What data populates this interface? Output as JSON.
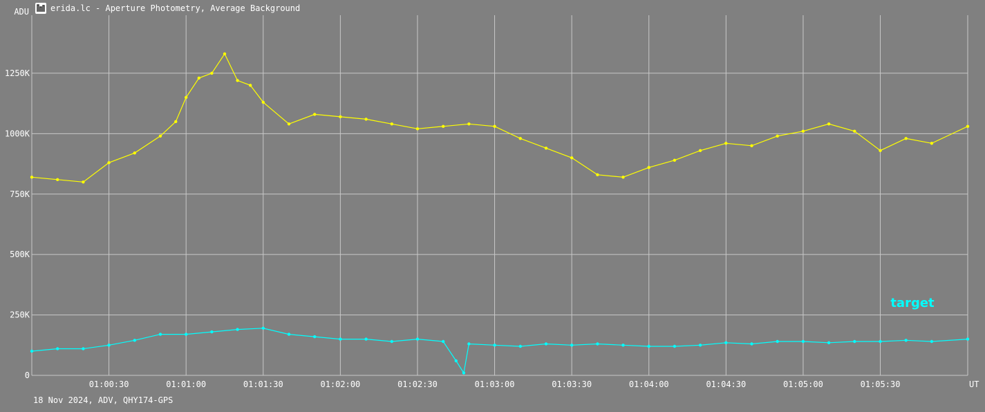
{
  "window": {
    "title": "erida.lc - Aperture Photometry, Average Background",
    "icon": "light-curve-app-icon"
  },
  "footer": {
    "text": "18 Nov 2024, ADV, QHY174-GPS"
  },
  "colors": {
    "background": "#808080",
    "grid": "#c8c8c8",
    "comparison": "#ffff00",
    "target": "#00ffff",
    "text": "#ffffff"
  },
  "chart_data": {
    "type": "line",
    "title": "",
    "xlabel": "UT",
    "ylabel": "ADU",
    "grid": true,
    "x_range": [
      "01:00:00",
      "01:06:04"
    ],
    "ylim": [
      0,
      1490000
    ],
    "x_ticks": [
      "01:00:30",
      "01:01:00",
      "01:01:30",
      "01:02:00",
      "01:02:30",
      "01:03:00",
      "01:03:30",
      "01:04:00",
      "01:04:30",
      "01:05:00",
      "01:05:30"
    ],
    "y_ticks": [
      {
        "value": 0,
        "label": "0"
      },
      {
        "value": 250000,
        "label": "250K"
      },
      {
        "value": 500000,
        "label": "500K"
      },
      {
        "value": 750000,
        "label": "750K"
      },
      {
        "value": 1000000,
        "label": "1000K"
      },
      {
        "value": 1250000,
        "label": "1250K"
      }
    ],
    "series_label": "target",
    "series": [
      {
        "color": "#ffff00",
        "x": [
          "01:00:00",
          "01:00:10",
          "01:00:20",
          "01:00:30",
          "01:00:40",
          "01:00:50",
          "01:00:56",
          "01:01:00",
          "01:01:05",
          "01:01:10",
          "01:01:15",
          "01:01:20",
          "01:01:25",
          "01:01:30",
          "01:01:40",
          "01:01:50",
          "01:02:00",
          "01:02:10",
          "01:02:20",
          "01:02:30",
          "01:02:40",
          "01:02:50",
          "01:03:00",
          "01:03:10",
          "01:03:20",
          "01:03:30",
          "01:03:40",
          "01:03:50",
          "01:04:00",
          "01:04:10",
          "01:04:20",
          "01:04:30",
          "01:04:40",
          "01:04:50",
          "01:05:00",
          "01:05:10",
          "01:05:20",
          "01:05:30",
          "01:05:40",
          "01:05:50",
          "01:06:04"
        ],
        "values": [
          820000,
          810000,
          800000,
          880000,
          920000,
          990000,
          1050000,
          1150000,
          1230000,
          1250000,
          1330000,
          1220000,
          1200000,
          1130000,
          1040000,
          1080000,
          1070000,
          1060000,
          1040000,
          1020000,
          1030000,
          1040000,
          1030000,
          980000,
          940000,
          900000,
          830000,
          820000,
          860000,
          890000,
          930000,
          960000,
          950000,
          990000,
          1010000,
          1040000,
          1010000,
          930000,
          980000,
          960000,
          1030000
        ]
      },
      {
        "color": "#00ffff",
        "x": [
          "01:00:00",
          "01:00:10",
          "01:00:20",
          "01:00:30",
          "01:00:40",
          "01:00:50",
          "01:01:00",
          "01:01:10",
          "01:01:20",
          "01:01:30",
          "01:01:40",
          "01:01:50",
          "01:02:00",
          "01:02:10",
          "01:02:20",
          "01:02:30",
          "01:02:40",
          "01:02:45",
          "01:02:48",
          "01:02:50",
          "01:03:00",
          "01:03:10",
          "01:03:20",
          "01:03:30",
          "01:03:40",
          "01:03:50",
          "01:04:00",
          "01:04:10",
          "01:04:20",
          "01:04:30",
          "01:04:40",
          "01:04:50",
          "01:05:00",
          "01:05:10",
          "01:05:20",
          "01:05:30",
          "01:05:40",
          "01:05:50",
          "01:06:04"
        ],
        "values": [
          100000,
          110000,
          110000,
          125000,
          145000,
          170000,
          170000,
          180000,
          190000,
          195000,
          170000,
          160000,
          150000,
          150000,
          140000,
          150000,
          140000,
          60000,
          10000,
          130000,
          125000,
          120000,
          130000,
          125000,
          130000,
          125000,
          120000,
          120000,
          125000,
          135000,
          130000,
          140000,
          140000,
          135000,
          140000,
          140000,
          145000,
          140000,
          150000
        ]
      }
    ]
  }
}
